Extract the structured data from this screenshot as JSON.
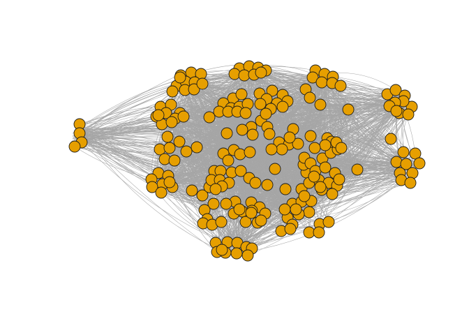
{
  "figure": {
    "type": "network-graph",
    "style": {
      "node_fill": "#E69F00",
      "node_stroke": "#1a1a1a",
      "edge_color": "#a6a6a6",
      "background": "#ffffff"
    }
  }
}
